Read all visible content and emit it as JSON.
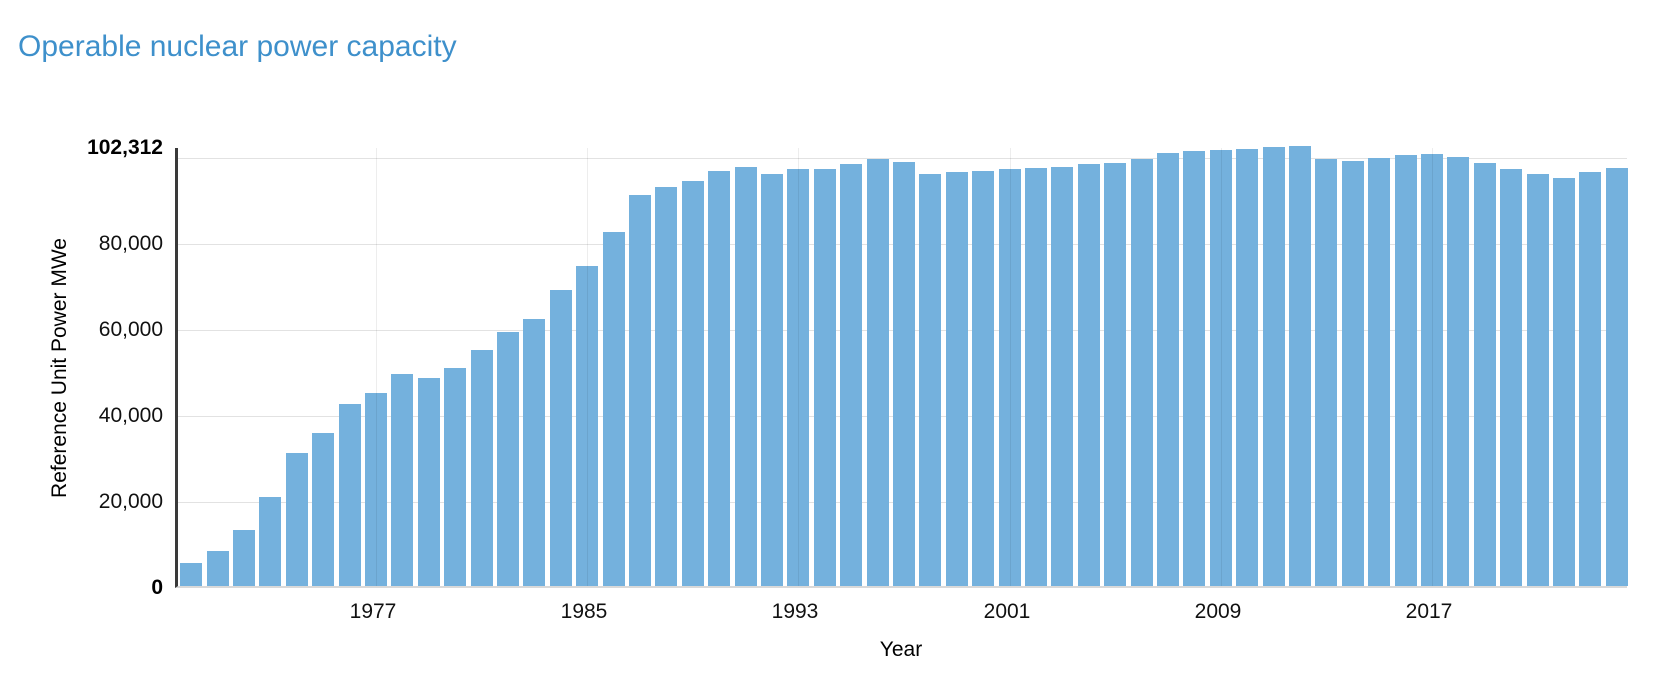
{
  "page": {
    "title": "Operable nuclear power capacity"
  },
  "chart_data": {
    "type": "bar",
    "title": "Operable nuclear power capacity",
    "xlabel": "Year",
    "ylabel": "Reference Unit Power MWe",
    "ylim": [
      0,
      102312
    ],
    "grid": true,
    "legend": "none",
    "bar_color": "#74b1dd",
    "title_color": "#3e90cb",
    "y_ticks": [
      {
        "value": 0,
        "label": "0",
        "bold": true
      },
      {
        "value": 20000,
        "label": "20,000",
        "bold": false
      },
      {
        "value": 40000,
        "label": "40,000",
        "bold": false
      },
      {
        "value": 60000,
        "label": "60,000",
        "bold": false
      },
      {
        "value": 80000,
        "label": "80,000",
        "bold": false
      },
      {
        "value": 102312,
        "label": "102,312",
        "bold": true
      }
    ],
    "y_gridline_values": [
      20000,
      40000,
      60000,
      80000,
      100000
    ],
    "x_ticks": [
      1977,
      1985,
      1993,
      2001,
      2009,
      2017
    ],
    "categories": [
      1970,
      1971,
      1972,
      1973,
      1974,
      1975,
      1976,
      1977,
      1978,
      1979,
      1980,
      1981,
      1982,
      1983,
      1984,
      1985,
      1986,
      1987,
      1988,
      1989,
      1990,
      1991,
      1992,
      1993,
      1994,
      1995,
      1996,
      1997,
      1998,
      1999,
      2000,
      2001,
      2002,
      2003,
      2004,
      2005,
      2006,
      2007,
      2008,
      2009,
      2010,
      2011,
      2012,
      2013,
      2014,
      2015,
      2016,
      2017,
      2018,
      2019,
      2020,
      2021,
      2022,
      2023,
      2024
    ],
    "values": [
      5400,
      8100,
      13100,
      20800,
      31000,
      35500,
      42400,
      44900,
      49200,
      48400,
      50600,
      54900,
      59000,
      62100,
      68800,
      74500,
      82400,
      91000,
      92700,
      94100,
      96500,
      97400,
      95700,
      97000,
      97000,
      98200,
      99200,
      98600,
      95900,
      96300,
      96500,
      96900,
      97300,
      97500,
      98100,
      98300,
      99400,
      100600,
      101100,
      101300,
      101600,
      102000,
      102312,
      99300,
      98800,
      99500,
      100200,
      100400,
      99800,
      98400,
      96900,
      95700,
      94900,
      96300,
      97300
    ]
  }
}
